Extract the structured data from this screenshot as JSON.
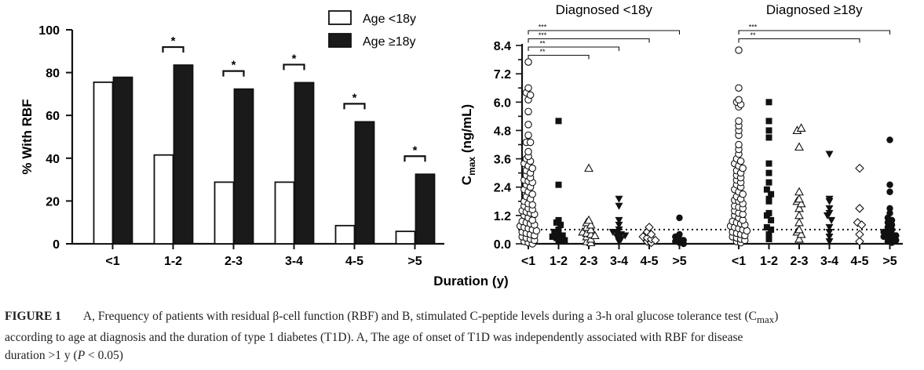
{
  "figure": {
    "x_axis_title": "Duration (y)",
    "caption": {
      "label": "FIGURE 1",
      "line1": "A, Frequency of patients with residual β-cell function (RBF) and B, stimulated C-peptide levels during a 3-h oral glucose tolerance test (C",
      "line1_sub": "max",
      "line1_end": ")",
      "line2": "according to age at diagnosis and the duration of type 1 diabetes (T1D). A, The age of onset of T1D was independently associated with RBF for disease",
      "line3_pre": "duration >1 y (",
      "line3_p": "P",
      "line3_post": " < 0.05)"
    }
  },
  "chart_data": [
    {
      "type": "bar",
      "ylabel": "% With RBF",
      "ylim": [
        0,
        100
      ],
      "yticks": [
        "0",
        "20",
        "40",
        "60",
        "80",
        "100"
      ],
      "categories": [
        "<1",
        "1-2",
        "2-3",
        "3-4",
        "4-5",
        ">5"
      ],
      "series": [
        {
          "name": "Age <18y",
          "fill": "#ffffff",
          "values": [
            75.5,
            41.5,
            28.8,
            28.8,
            8.5,
            5.8
          ]
        },
        {
          "name": "Age ≥18y",
          "fill": "#1a1a1a",
          "values": [
            77.8,
            83.5,
            72.3,
            75.3,
            57.0,
            32.5
          ]
        }
      ],
      "significance": [
        {
          "category": "1-2",
          "label": "*"
        },
        {
          "category": "2-3",
          "label": "*"
        },
        {
          "category": "3-4",
          "label": "*"
        },
        {
          "category": "4-5",
          "label": "*"
        },
        {
          "category": ">5",
          "label": "*"
        }
      ],
      "legend_position": "top-right"
    },
    {
      "type": "scatter",
      "ylabel_main": "C",
      "ylabel_sub": "max",
      "ylabel_unit": "(ng/mL)",
      "ylim": [
        0,
        8.4
      ],
      "yticks": [
        "0.0",
        "0.6",
        "1.2",
        "1.8",
        "2.4",
        "3.0",
        "3.6",
        "4.2",
        "4.8",
        "5.4",
        "6.0",
        "6.6",
        "7.2",
        "7.8",
        "8.4"
      ],
      "ytick_labels_shown": [
        "0.0",
        "1.2",
        "2.4",
        "3.6",
        "4.8",
        "6.0",
        "7.2",
        "8.4"
      ],
      "reference_line": 0.6,
      "groups": [
        {
          "title": "Diagnosed <18y",
          "categories": [
            "<1",
            "1-2",
            "2-3",
            "3-4",
            "4-5",
            ">5"
          ],
          "markers": [
            "circle-open",
            "square-filled",
            "triangle-open",
            "triangle-down-filled",
            "diamond-open",
            "circle-filled"
          ],
          "values": [
            [
              7.7,
              6.6,
              6.4,
              6.3,
              6.1,
              5.6,
              5.05,
              4.6,
              4.3,
              4.3,
              3.9,
              3.7,
              3.6,
              3.5,
              3.4,
              3.3,
              3.2,
              3.1,
              3.0,
              2.9,
              2.8,
              2.7,
              2.65,
              2.6,
              2.5,
              2.4,
              2.3,
              2.2,
              2.1,
              2.0,
              1.9,
              1.8,
              1.7,
              1.65,
              1.6,
              1.5,
              1.45,
              1.4,
              1.35,
              1.3,
              1.25,
              1.2,
              1.1,
              1.0,
              0.95,
              0.9,
              0.85,
              0.8,
              0.75,
              0.7,
              0.65,
              0.6,
              0.55,
              0.5,
              0.45,
              0.4,
              0.35,
              0.3,
              0.25,
              0.2,
              0.15,
              0.1,
              0.05,
              0.0
            ],
            [
              5.2,
              2.5,
              1.0,
              0.9,
              0.8,
              0.6,
              0.5,
              0.4,
              0.35,
              0.3,
              0.25,
              0.2,
              0.15,
              0.1
            ],
            [
              3.2,
              1.0,
              0.9,
              0.8,
              0.7,
              0.6,
              0.5,
              0.45,
              0.4,
              0.35,
              0.3,
              0.2,
              0.1,
              0.05
            ],
            [
              1.9,
              1.6,
              1.0,
              0.8,
              0.6,
              0.5,
              0.45,
              0.4,
              0.35,
              0.3,
              0.2,
              0.1
            ],
            [
              0.7,
              0.5,
              0.4,
              0.3,
              0.25,
              0.2,
              0.15,
              0.1,
              0.05
            ],
            [
              1.1,
              0.4,
              0.3,
              0.2,
              0.15,
              0.1,
              0.05,
              0.0
            ]
          ],
          "significance": [
            {
              "from": "<1",
              "to": ">5",
              "label": "***"
            },
            {
              "from": "<1",
              "to": "4-5",
              "label": "***"
            },
            {
              "from": "<1",
              "to": "3-4",
              "label": "**"
            },
            {
              "from": "<1",
              "to": "2-3",
              "label": "**"
            }
          ]
        },
        {
          "title": "Diagnosed ≥18y",
          "categories": [
            "<1",
            "1-2",
            "2-3",
            "3-4",
            "4-5",
            ">5"
          ],
          "markers": [
            "circle-open",
            "square-filled",
            "triangle-open",
            "triangle-down-filled",
            "diamond-open",
            "circle-filled"
          ],
          "values": [
            [
              8.2,
              6.6,
              6.1,
              6.0,
              5.9,
              5.8,
              5.2,
              5.0,
              4.8,
              4.6,
              4.2,
              4.0,
              3.8,
              3.6,
              3.5,
              3.4,
              3.3,
              3.2,
              3.1,
              3.0,
              2.9,
              2.8,
              2.7,
              2.6,
              2.5,
              2.4,
              2.3,
              2.2,
              2.1,
              2.0,
              1.9,
              1.85,
              1.8,
              1.7,
              1.6,
              1.55,
              1.5,
              1.4,
              1.3,
              1.25,
              1.2,
              1.1,
              1.0,
              0.95,
              0.9,
              0.85,
              0.8,
              0.75,
              0.7,
              0.65,
              0.6,
              0.55,
              0.5,
              0.45,
              0.4,
              0.35,
              0.3,
              0.25,
              0.2,
              0.15,
              0.1,
              0.05
            ],
            [
              6.0,
              5.2,
              4.8,
              4.5,
              3.4,
              3.0,
              2.6,
              2.3,
              2.1,
              1.9,
              1.8,
              1.3,
              1.2,
              1.0,
              0.7,
              0.6,
              0.4,
              0.2
            ],
            [
              4.8,
              4.9,
              4.1,
              2.2,
              1.9,
              1.8,
              1.7,
              1.5,
              1.2,
              0.9,
              0.6,
              0.5,
              0.4,
              0.2
            ],
            [
              3.8,
              1.9,
              1.8,
              1.5,
              1.3,
              1.2,
              1.0,
              0.7,
              0.5,
              0.3,
              0.1
            ],
            [
              3.2,
              1.5,
              0.9,
              0.8,
              0.4,
              0.1
            ],
            [
              4.4,
              2.5,
              2.2,
              1.5,
              1.3,
              1.1,
              1.0,
              0.9,
              0.8,
              0.7,
              0.6,
              0.5,
              0.45,
              0.4,
              0.35,
              0.3,
              0.25,
              0.2,
              0.15,
              0.1,
              0.05
            ]
          ],
          "significance": [
            {
              "from": "<1",
              "to": ">5",
              "label": "***"
            },
            {
              "from": "<1",
              "to": "4-5",
              "label": "**"
            }
          ]
        }
      ]
    }
  ]
}
